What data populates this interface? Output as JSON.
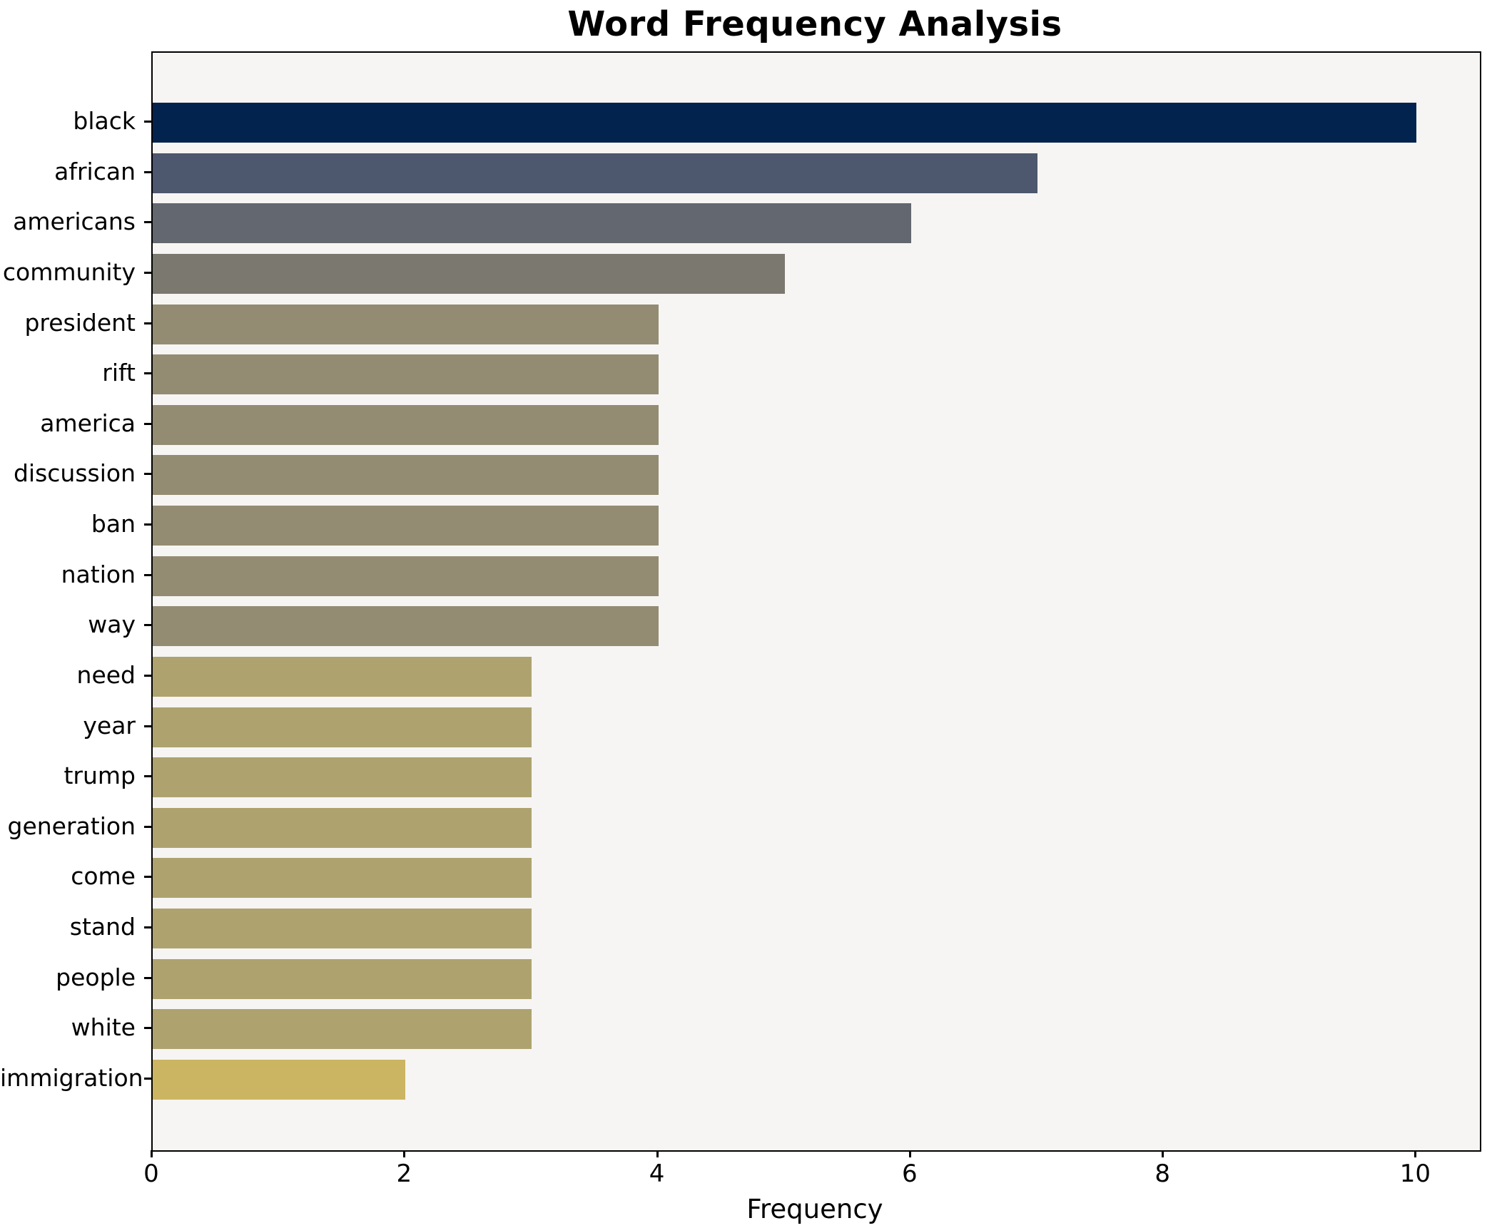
{
  "title": "Word Frequency Analysis",
  "xlabel": "Frequency",
  "chart_data": {
    "type": "bar",
    "orientation": "horizontal",
    "title": "Word Frequency Analysis",
    "xlabel": "Frequency",
    "ylabel": "",
    "grid": false,
    "legend": false,
    "plot_background": "#f6f5f3",
    "figure_background": "#ffffff",
    "xlim": [
      0,
      10.5
    ],
    "x_ticks": [
      0,
      2,
      4,
      6,
      8,
      10
    ],
    "categories": [
      "black",
      "african",
      "americans",
      "community",
      "president",
      "rift",
      "america",
      "discussion",
      "ban",
      "nation",
      "way",
      "need",
      "year",
      "trump",
      "generation",
      "come",
      "stand",
      "people",
      "white",
      "immigration"
    ],
    "values": [
      10,
      7,
      6,
      5,
      4,
      4,
      4,
      4,
      4,
      4,
      4,
      3,
      3,
      3,
      3,
      3,
      3,
      3,
      3,
      2
    ],
    "bar_colors": [
      "#02234e",
      "#4d576d",
      "#63676f",
      "#7a786f",
      "#938c73",
      "#938c73",
      "#938c73",
      "#938c73",
      "#938c73",
      "#938c73",
      "#938c73",
      "#aea36f",
      "#aea36f",
      "#aea36f",
      "#aea36f",
      "#aea36f",
      "#aea36f",
      "#aea36f",
      "#aea36f",
      "#ccb562"
    ]
  }
}
